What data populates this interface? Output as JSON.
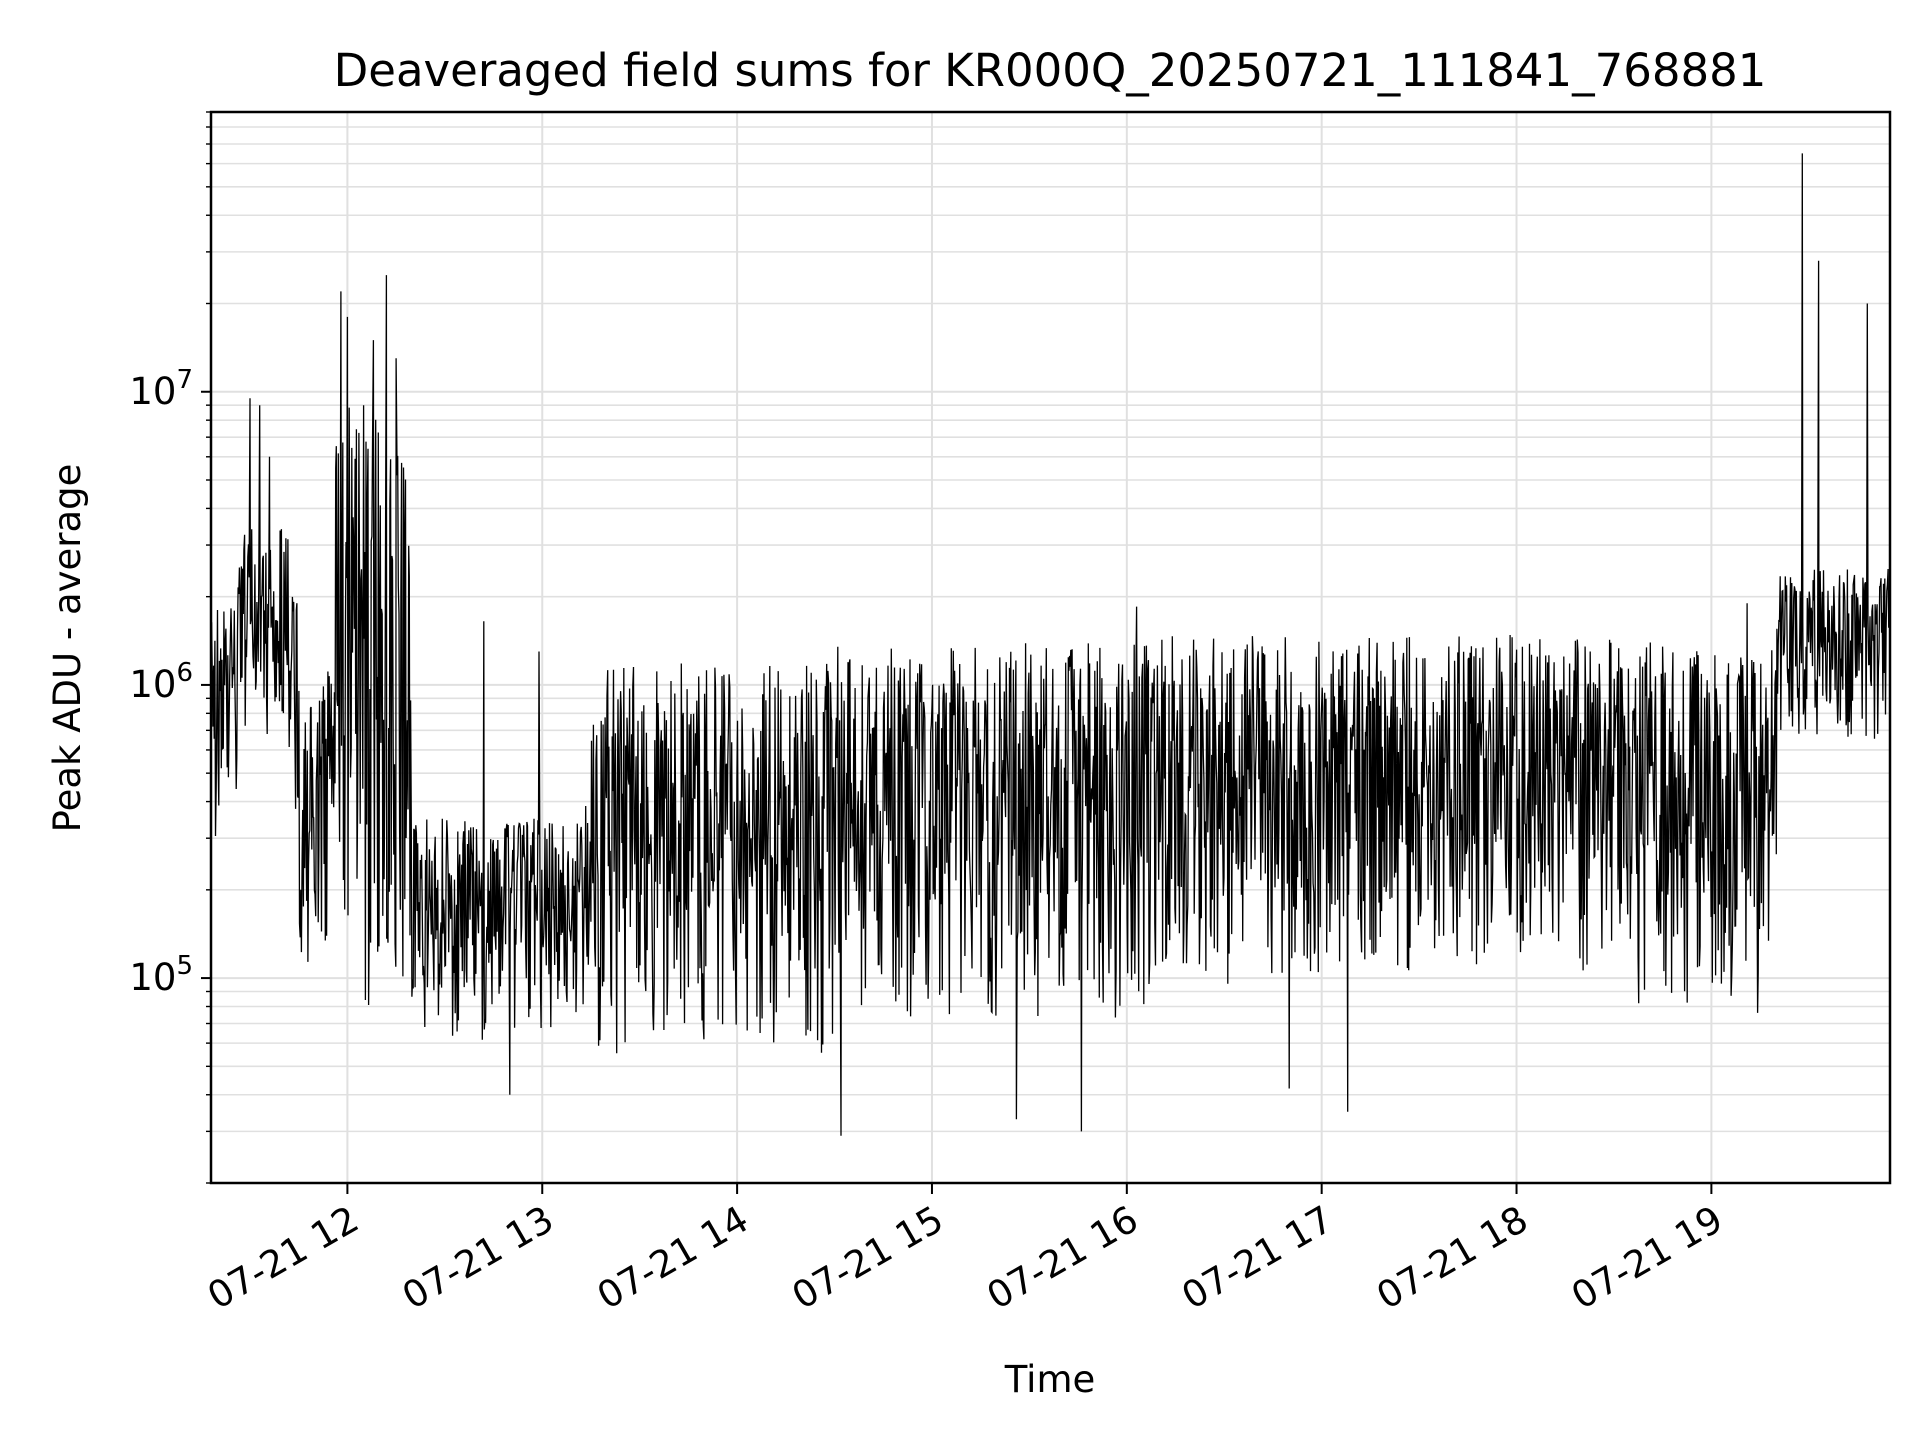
{
  "chart_data": {
    "type": "line",
    "title": "Deaveraged field sums for KR000Q_20250721_111841_768881",
    "xlabel": "Time",
    "ylabel": "Peak ADU - average",
    "yscale": "log",
    "xlim": [
      "2025-07-21 11:18",
      "2025-07-21 19:55"
    ],
    "ylim": [
      20000,
      90000000
    ],
    "grid": true,
    "line_color": "#000000",
    "grid_color": "#e0e0e0",
    "x_ticks": [
      {
        "value": "2025-07-21 12:00",
        "label": "07-21 12"
      },
      {
        "value": "2025-07-21 13:00",
        "label": "07-21 13"
      },
      {
        "value": "2025-07-21 14:00",
        "label": "07-21 14"
      },
      {
        "value": "2025-07-21 15:00",
        "label": "07-21 15"
      },
      {
        "value": "2025-07-21 16:00",
        "label": "07-21 16"
      },
      {
        "value": "2025-07-21 17:00",
        "label": "07-21 17"
      },
      {
        "value": "2025-07-21 18:00",
        "label": "07-21 18"
      },
      {
        "value": "2025-07-21 19:00",
        "label": "07-21 19"
      }
    ],
    "y_ticks": [
      {
        "value": 100000,
        "base": "10",
        "exp": "5"
      },
      {
        "value": 1000000,
        "base": "10",
        "exp": "6"
      },
      {
        "value": 10000000,
        "base": "10",
        "exp": "7"
      }
    ],
    "segments": [
      {
        "start": "2025-07-21 11:18",
        "end": "2025-07-21 11:27",
        "hi": 2000000,
        "lo": 250000
      },
      {
        "start": "2025-07-21 11:27",
        "end": "2025-07-21 11:45",
        "hi": 3500000,
        "lo": 600000
      },
      {
        "start": "2025-07-21 11:45",
        "end": "2025-07-21 11:56",
        "hi": 1000000,
        "lo": 100000
      },
      {
        "start": "2025-07-21 11:56",
        "end": "2025-07-21 12:20",
        "hi": 9000000,
        "lo": 80000
      },
      {
        "start": "2025-07-21 12:20",
        "end": "2025-07-21 13:15",
        "hi": 350000,
        "lo": 60000
      },
      {
        "start": "2025-07-21 13:15",
        "end": "2025-07-21 14:30",
        "hi": 1200000,
        "lo": 55000
      },
      {
        "start": "2025-07-21 14:30",
        "end": "2025-07-21 16:10",
        "hi": 1400000,
        "lo": 70000
      },
      {
        "start": "2025-07-21 16:10",
        "end": "2025-07-21 17:15",
        "hi": 1500000,
        "lo": 90000
      },
      {
        "start": "2025-07-21 17:15",
        "end": "2025-07-21 18:35",
        "hi": 1500000,
        "lo": 100000
      },
      {
        "start": "2025-07-21 18:35",
        "end": "2025-07-21 19:20",
        "hi": 1400000,
        "lo": 70000
      },
      {
        "start": "2025-07-21 19:20",
        "end": "2025-07-21 19:55",
        "hi": 2500000,
        "lo": 600000
      }
    ],
    "spikes": [
      {
        "x": "2025-07-21 11:30",
        "value": 9500000
      },
      {
        "x": "2025-07-21 11:33",
        "value": 9000000
      },
      {
        "x": "2025-07-21 11:36",
        "value": 6000000
      },
      {
        "x": "2025-07-21 11:58",
        "value": 22000000
      },
      {
        "x": "2025-07-21 12:00",
        "value": 18000000
      },
      {
        "x": "2025-07-21 12:05",
        "value": 9000000
      },
      {
        "x": "2025-07-21 12:08",
        "value": 15000000
      },
      {
        "x": "2025-07-21 12:12",
        "value": 25000000
      },
      {
        "x": "2025-07-21 12:15",
        "value": 13000000
      },
      {
        "x": "2025-07-21 12:42",
        "value": 1650000
      },
      {
        "x": "2025-07-21 12:59",
        "value": 1300000
      },
      {
        "x": "2025-07-21 14:31",
        "value": 1350000
      },
      {
        "x": "2025-07-21 16:03",
        "value": 1850000
      },
      {
        "x": "2025-07-21 19:11",
        "value": 1900000
      },
      {
        "x": "2025-07-21 19:28",
        "value": 65000000
      },
      {
        "x": "2025-07-21 19:33",
        "value": 28000000
      },
      {
        "x": "2025-07-21 19:48",
        "value": 20000000
      },
      {
        "x": "2025-07-21 15:26",
        "value": 33000
      },
      {
        "x": "2025-07-21 15:46",
        "value": 30000
      },
      {
        "x": "2025-07-21 14:32",
        "value": 29000
      },
      {
        "x": "2025-07-21 17:08",
        "value": 35000
      },
      {
        "x": "2025-07-21 12:50",
        "value": 40000
      },
      {
        "x": "2025-07-21 16:50",
        "value": 42000
      }
    ]
  }
}
